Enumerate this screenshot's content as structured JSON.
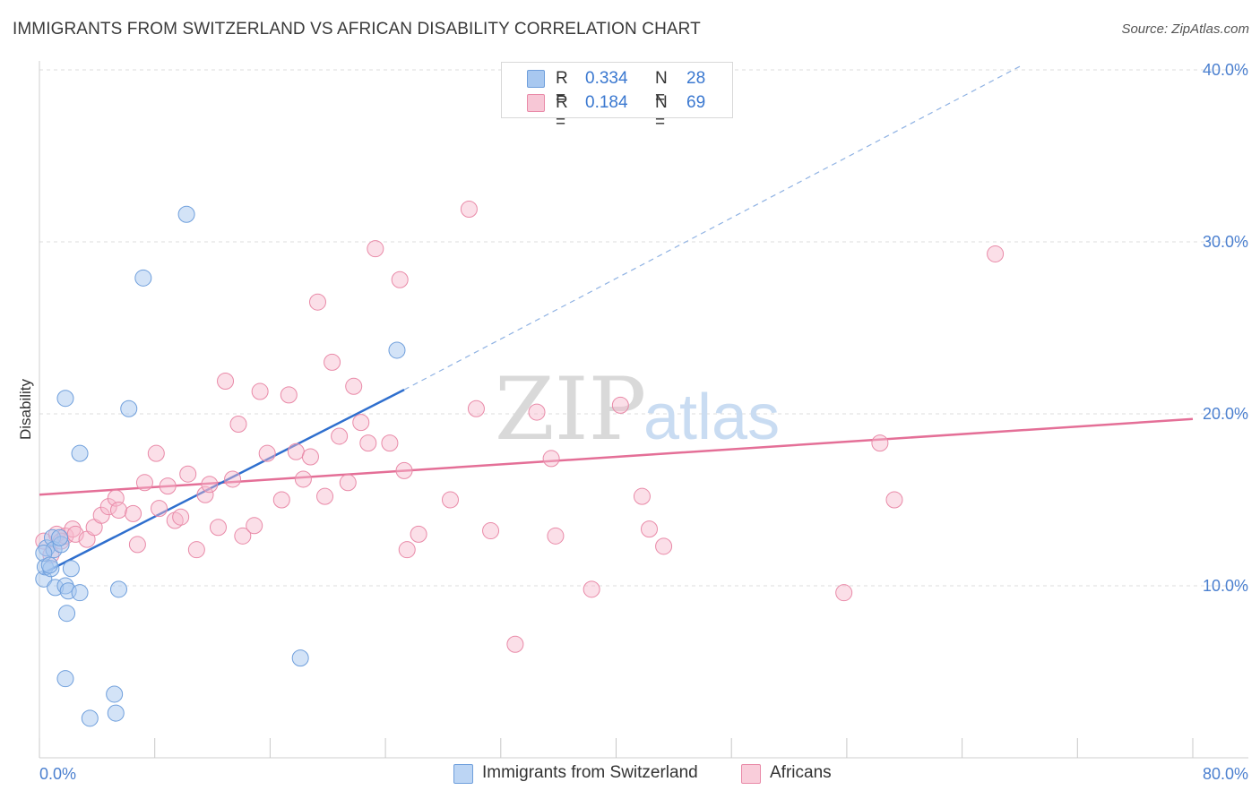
{
  "title": "IMMIGRANTS FROM SWITZERLAND VS AFRICAN DISABILITY CORRELATION CHART",
  "source": "Source: ZipAtlas.com",
  "watermark": {
    "zip": "ZIP",
    "atlas": "atlas"
  },
  "legend": {
    "rows": [
      {
        "r_label": "R =",
        "r_value": "0.334",
        "n_label": "N =",
        "n_value": "28"
      },
      {
        "r_label": "R =",
        "r_value": "0.184",
        "n_label": "N =",
        "n_value": "69"
      }
    ]
  },
  "colors": {
    "blue_fill": "#a8c8f0",
    "blue_stroke": "#6f9fdc",
    "blue_line": "#2f6fce",
    "pink_fill": "#f7b9cc",
    "pink_stroke": "#e98aa8",
    "pink_line": "#e46f97",
    "grid": "#dcdcdc",
    "tick_label": "#4a7fcf"
  },
  "chart_data": {
    "type": "scatter",
    "title": "IMMIGRANTS FROM SWITZERLAND VS AFRICAN DISABILITY CORRELATION CHART",
    "xlabel": "",
    "ylabel": "Disability",
    "xlim": [
      0,
      80
    ],
    "ylim": [
      0,
      40
    ],
    "x_tick_labels": [
      "0.0%",
      "80.0%"
    ],
    "y_ticks": [
      10,
      20,
      30,
      40
    ],
    "y_tick_labels": [
      "10.0%",
      "20.0%",
      "30.0%",
      "40.0%"
    ],
    "grid": "horizontal dashed",
    "legend_position": "top-center",
    "series": [
      {
        "name": "Immigrants from Switzerland",
        "color": "#a8c8f0",
        "r": 0.334,
        "n": 28,
        "trend": {
          "x0": 0.2,
          "y0": 10.7,
          "x1": 25.3,
          "y1": 21.4,
          "dashed_to_x": 68.0,
          "dashed_to_y": 40.2
        },
        "points": [
          [
            0.3,
            10.4
          ],
          [
            0.4,
            11.1
          ],
          [
            0.5,
            12.2
          ],
          [
            0.8,
            11.0
          ],
          [
            0.9,
            12.8
          ],
          [
            1.0,
            12.1
          ],
          [
            1.1,
            9.9
          ],
          [
            1.5,
            12.4
          ],
          [
            1.8,
            10.0
          ],
          [
            2.0,
            9.7
          ],
          [
            2.2,
            11.0
          ],
          [
            1.9,
            8.4
          ],
          [
            1.8,
            20.9
          ],
          [
            2.8,
            9.6
          ],
          [
            2.8,
            17.7
          ],
          [
            1.8,
            4.6
          ],
          [
            5.2,
            3.7
          ],
          [
            3.5,
            2.3
          ],
          [
            5.3,
            2.6
          ],
          [
            5.5,
            9.8
          ],
          [
            6.2,
            20.3
          ],
          [
            7.2,
            27.9
          ],
          [
            10.2,
            31.6
          ],
          [
            18.1,
            5.8
          ],
          [
            24.8,
            23.7
          ],
          [
            0.3,
            11.9
          ],
          [
            1.4,
            12.8
          ],
          [
            0.7,
            11.2
          ]
        ]
      },
      {
        "name": "Africans",
        "color": "#f7b9cc",
        "r": 0.184,
        "n": 69,
        "trend": {
          "x0": 0,
          "y0": 15.3,
          "x1": 80,
          "y1": 19.7
        },
        "points": [
          [
            0.3,
            12.6
          ],
          [
            0.8,
            11.8
          ],
          [
            1.2,
            13.0
          ],
          [
            1.5,
            12.6
          ],
          [
            1.8,
            12.9
          ],
          [
            2.3,
            13.3
          ],
          [
            2.5,
            13.0
          ],
          [
            3.3,
            12.7
          ],
          [
            3.8,
            13.4
          ],
          [
            4.3,
            14.1
          ],
          [
            4.8,
            14.6
          ],
          [
            5.3,
            15.1
          ],
          [
            5.5,
            14.4
          ],
          [
            6.5,
            14.2
          ],
          [
            6.8,
            12.4
          ],
          [
            7.3,
            16.0
          ],
          [
            8.1,
            17.7
          ],
          [
            8.3,
            14.5
          ],
          [
            8.9,
            15.8
          ],
          [
            9.4,
            13.8
          ],
          [
            9.8,
            14.0
          ],
          [
            10.3,
            16.5
          ],
          [
            10.9,
            12.1
          ],
          [
            11.5,
            15.3
          ],
          [
            11.8,
            15.9
          ],
          [
            12.4,
            13.4
          ],
          [
            12.9,
            21.9
          ],
          [
            13.4,
            16.2
          ],
          [
            13.8,
            19.4
          ],
          [
            14.1,
            12.9
          ],
          [
            14.9,
            13.5
          ],
          [
            15.3,
            21.3
          ],
          [
            15.8,
            17.7
          ],
          [
            16.8,
            15.0
          ],
          [
            17.3,
            21.1
          ],
          [
            17.8,
            17.8
          ],
          [
            18.3,
            16.2
          ],
          [
            18.8,
            17.5
          ],
          [
            19.3,
            26.5
          ],
          [
            19.8,
            15.2
          ],
          [
            20.3,
            23.0
          ],
          [
            20.8,
            18.7
          ],
          [
            21.4,
            16.0
          ],
          [
            21.8,
            21.6
          ],
          [
            22.3,
            19.5
          ],
          [
            22.8,
            18.3
          ],
          [
            23.3,
            29.6
          ],
          [
            24.3,
            18.3
          ],
          [
            25.0,
            27.8
          ],
          [
            25.3,
            16.7
          ],
          [
            25.5,
            12.1
          ],
          [
            26.3,
            13.0
          ],
          [
            28.5,
            15.0
          ],
          [
            29.8,
            31.9
          ],
          [
            30.3,
            20.3
          ],
          [
            31.3,
            13.2
          ],
          [
            33.0,
            6.6
          ],
          [
            34.5,
            20.1
          ],
          [
            35.5,
            17.4
          ],
          [
            35.8,
            12.9
          ],
          [
            38.3,
            9.8
          ],
          [
            40.3,
            20.5
          ],
          [
            41.8,
            15.2
          ],
          [
            42.3,
            13.3
          ],
          [
            43.3,
            12.3
          ],
          [
            55.8,
            9.6
          ],
          [
            58.3,
            18.3
          ],
          [
            59.3,
            15.0
          ],
          [
            66.3,
            29.3
          ]
        ]
      }
    ],
    "extra_points_note": ""
  }
}
